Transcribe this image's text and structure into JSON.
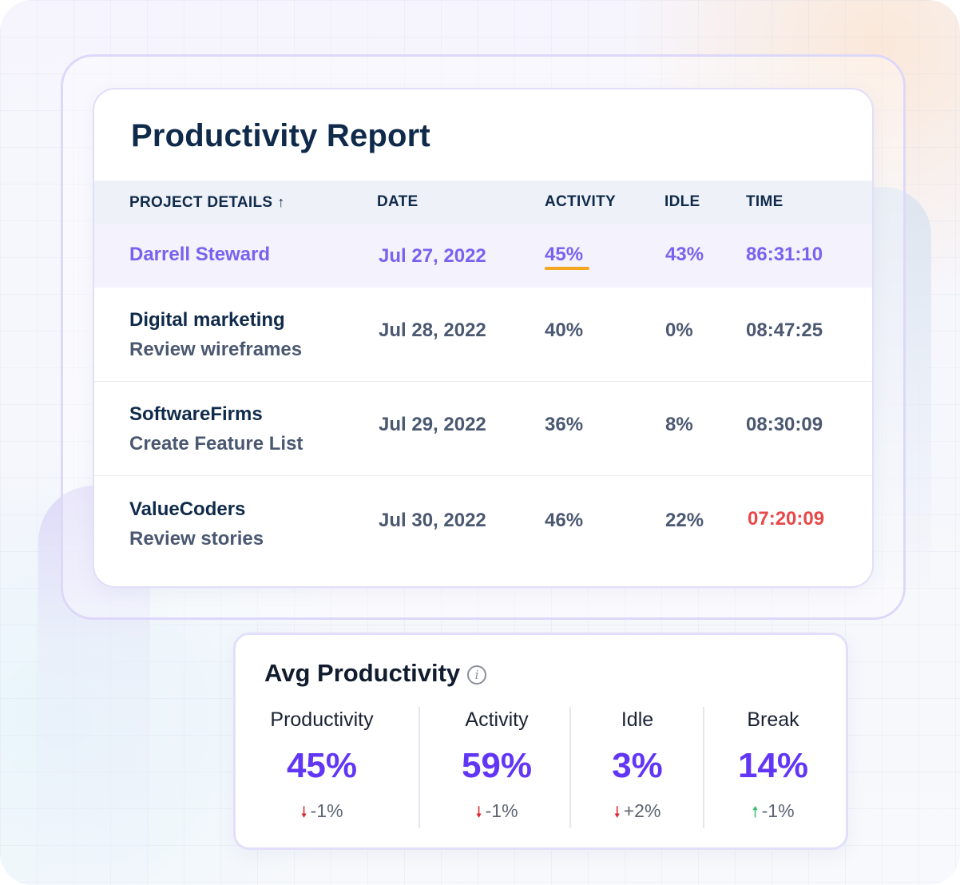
{
  "report": {
    "title": "Productivity Report",
    "columns": {
      "project": "PROJECT DETAILS",
      "date": "DATE",
      "activity": "ACTIVITY",
      "idle": "IDLE",
      "time": "TIME"
    },
    "sort_icon": "↑",
    "rows": [
      {
        "name": "Darrell Steward",
        "sub": "",
        "date": "Jul 27, 2022",
        "activity": "45%",
        "idle": "43%",
        "time": "86:31:10"
      },
      {
        "name": "Digital marketing",
        "sub": "Review wireframes",
        "date": "Jul 28, 2022",
        "activity": "40%",
        "idle": "0%",
        "time": "08:47:25"
      },
      {
        "name": "SoftwareFirms",
        "sub": "Create Feature List",
        "date": "Jul 29, 2022",
        "activity": "36%",
        "idle": "8%",
        "time": "08:30:09"
      },
      {
        "name": "ValueCoders",
        "sub": "Review stories",
        "date": "Jul 30, 2022",
        "activity": "46%",
        "idle": "22%",
        "time": "07:20:09"
      }
    ]
  },
  "avg": {
    "title": "Avg Productivity",
    "info_icon": "i",
    "metrics": [
      {
        "label": "Productivity",
        "value": "45%",
        "delta": "-1%",
        "trend": "down"
      },
      {
        "label": "Activity",
        "value": "59%",
        "delta": "-1%",
        "trend": "down"
      },
      {
        "label": "Idle",
        "value": "3%",
        "delta": "+2%",
        "trend": "down"
      },
      {
        "label": "Break",
        "value": "14%",
        "delta": "-1%",
        "trend": "up"
      }
    ]
  },
  "colors": {
    "accent_purple": "#6236f5",
    "highlight_text": "#7a62ee",
    "underline_orange": "#f5a623",
    "alert_red": "#e84848",
    "arrow_down": "#d9252c",
    "arrow_up": "#2fc36b"
  }
}
